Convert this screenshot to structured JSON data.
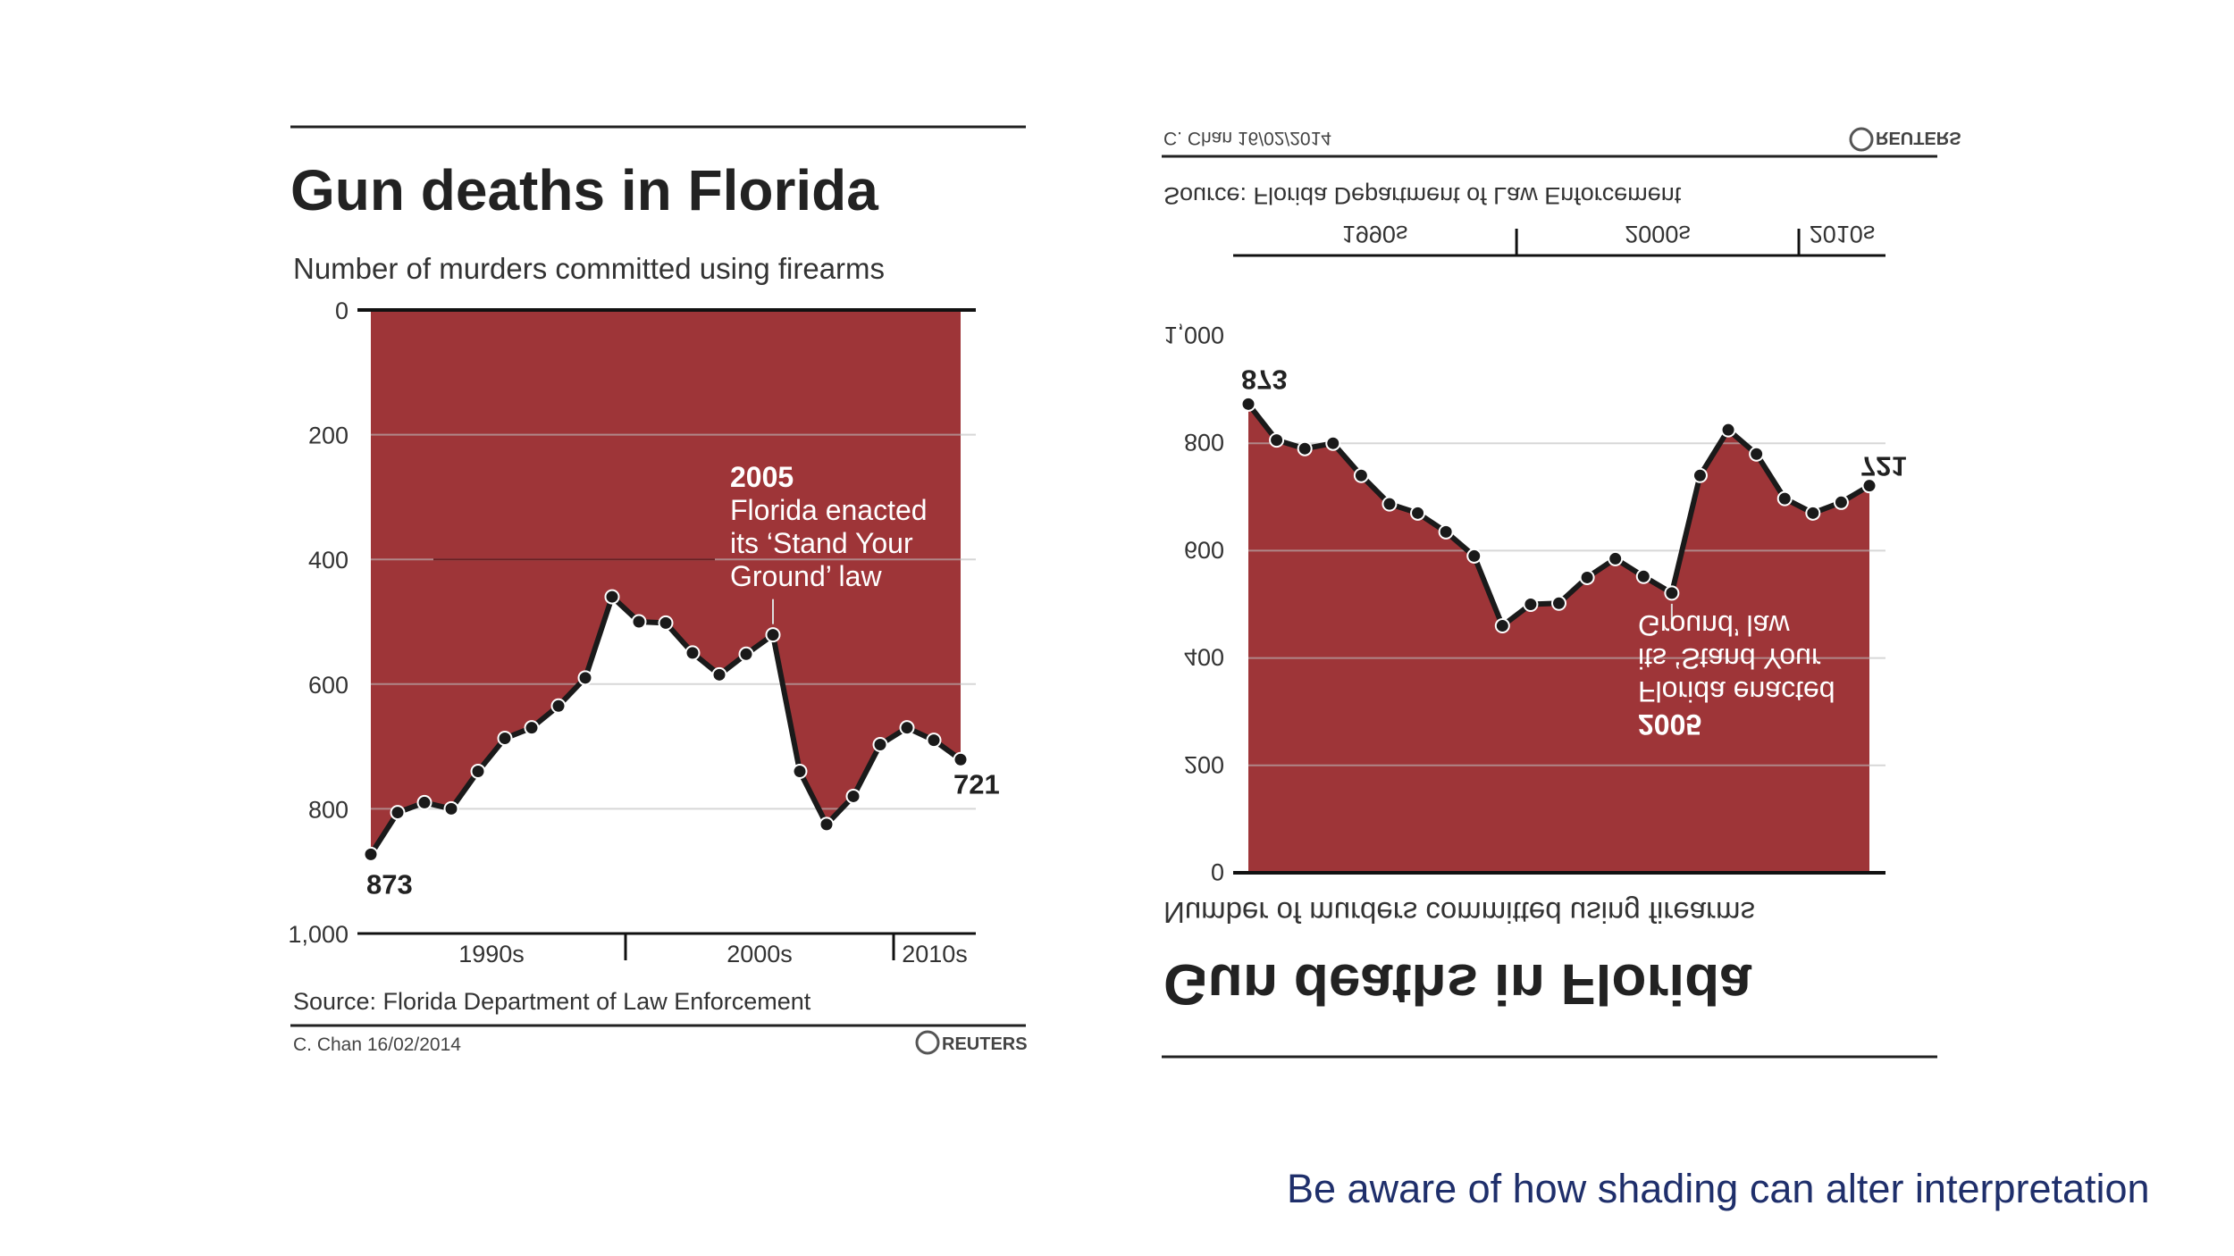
{
  "slide": {
    "caption": "Be aware of how shading can alter interpretation"
  },
  "colors": {
    "fill": "#9e3538",
    "line": "#1a1a1a",
    "grid": "#bdbdbd",
    "caption": "#1f2f6b"
  },
  "chart_data": [
    {
      "type": "area",
      "orientation": "inverted-y",
      "title": "Gun deaths in Florida",
      "subtitle": "Number of murders committed using firearms",
      "source": "Source: Florida Department of Law Enforcement",
      "credit": "C. Chan  16/02/2014",
      "logo_text": "REUTERS",
      "y_ticks": [
        "0",
        "200",
        "400",
        "600",
        "800",
        "1,000"
      ],
      "y_tick_values": [
        0,
        200,
        400,
        600,
        800,
        1000
      ],
      "ylim": [
        0,
        1000
      ],
      "decade_labels": [
        "1990s",
        "2000s",
        "2010s"
      ],
      "x": [
        1990,
        1991,
        1992,
        1993,
        1994,
        1995,
        1996,
        1997,
        1998,
        1999,
        2000,
        2001,
        2002,
        2003,
        2004,
        2005,
        2006,
        2007,
        2008,
        2009,
        2010,
        2011,
        2012
      ],
      "values": [
        873,
        806,
        790,
        800,
        740,
        687,
        670,
        635,
        590,
        460,
        500,
        502,
        550,
        585,
        552,
        521,
        740,
        825,
        780,
        697,
        670,
        690,
        721
      ],
      "point_labels": [
        {
          "index": 0,
          "text": "873"
        },
        {
          "index": 22,
          "text": "721"
        }
      ],
      "annotation": {
        "index": 15,
        "year": "2005",
        "lines": [
          "Florida enacted",
          "its ‘Stand Your",
          "Ground’ law"
        ]
      }
    },
    {
      "type": "area",
      "orientation": "flipped-vertically",
      "title": "Gun deaths in Florida",
      "subtitle": "Number of murders committed using firearms",
      "source": "Source: Florida Department of Law Enforcement",
      "credit": "C. Chan  16/02/2014",
      "logo_text": "REUTERS",
      "y_ticks": [
        "0",
        "200",
        "400",
        "600",
        "800",
        "1,000"
      ],
      "y_tick_values": [
        0,
        200,
        400,
        600,
        800,
        1000
      ],
      "ylim": [
        0,
        1000
      ],
      "decade_labels": [
        "1990s",
        "2000s",
        "2010s"
      ],
      "x": [
        1990,
        1991,
        1992,
        1993,
        1994,
        1995,
        1996,
        1997,
        1998,
        1999,
        2000,
        2001,
        2002,
        2003,
        2004,
        2005,
        2006,
        2007,
        2008,
        2009,
        2010,
        2011,
        2012
      ],
      "values": [
        873,
        806,
        790,
        800,
        740,
        687,
        670,
        635,
        590,
        460,
        500,
        502,
        550,
        585,
        552,
        521,
        740,
        825,
        780,
        697,
        670,
        690,
        721
      ],
      "point_labels": [
        {
          "index": 0,
          "text": "873"
        },
        {
          "index": 22,
          "text": "721"
        }
      ],
      "annotation": {
        "index": 15,
        "year": "2005",
        "lines": [
          "Florida enacted",
          "its ‘Stand Your",
          "Ground’ law"
        ]
      }
    }
  ]
}
